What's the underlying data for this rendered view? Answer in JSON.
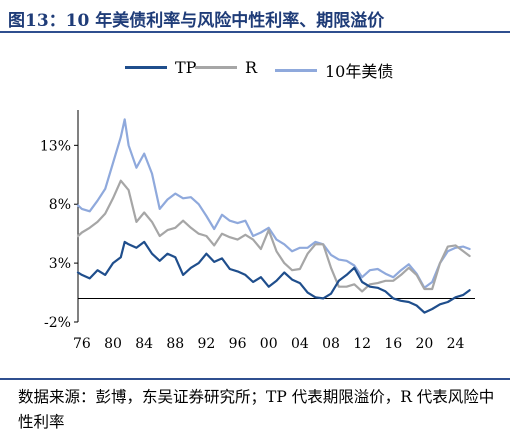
{
  "title": "图13：10 年美债利率与风险中性利率、期限溢价",
  "source_note": "数据来源：彭博，东吴证券研究所；TP 代表期限溢价，R 代表风险中性利率",
  "colors": {
    "title": "#1f3c78",
    "rule": "#2f4f8f"
  },
  "chart_data": {
    "type": "line",
    "title": "",
    "xlabel": "",
    "ylabel": "",
    "x_tick_labels": [
      "76",
      "80",
      "84",
      "88",
      "92",
      "96",
      "00",
      "04",
      "08",
      "12",
      "16",
      "20",
      "24"
    ],
    "x_ticks": [
      1976,
      1980,
      1984,
      1988,
      1992,
      1996,
      2000,
      2004,
      2008,
      2012,
      2016,
      2020,
      2024
    ],
    "y_tick_labels": [
      "-2%",
      "3%",
      "8%",
      "13%"
    ],
    "y_ticks": [
      -2,
      3,
      8,
      13
    ],
    "xlim": [
      1975.5,
      2026.5
    ],
    "ylim": [
      -2,
      16
    ],
    "zero_line": true,
    "legend_position": "top",
    "series": [
      {
        "name": "TP",
        "color": "#1f4e8c",
        "x": [
          1975.5,
          1976,
          1977,
          1978,
          1979,
          1980,
          1981,
          1981.5,
          1982,
          1983,
          1984,
          1985,
          1986,
          1987,
          1988,
          1989,
          1990,
          1991,
          1992,
          1993,
          1994,
          1995,
          1996,
          1997,
          1998,
          1999,
          2000,
          2001,
          2002,
          2003,
          2004,
          2005,
          2006,
          2007,
          2008,
          2009,
          2010,
          2011,
          2012,
          2013,
          2014,
          2015,
          2016,
          2017,
          2018,
          2019,
          2020,
          2021,
          2022,
          2023,
          2024,
          2025,
          2025.8
        ],
        "y": [
          2.2,
          2.0,
          1.7,
          2.4,
          2.0,
          3.0,
          3.5,
          4.8,
          4.6,
          4.3,
          4.8,
          3.8,
          3.2,
          3.8,
          3.5,
          2.0,
          2.6,
          3.0,
          3.8,
          3.1,
          3.4,
          2.5,
          2.3,
          2.0,
          1.4,
          1.8,
          1.0,
          1.5,
          2.2,
          1.6,
          1.3,
          0.5,
          0.1,
          0.0,
          0.4,
          1.5,
          2.0,
          2.6,
          1.4,
          1.0,
          0.9,
          0.6,
          0.0,
          -0.2,
          -0.3,
          -0.6,
          -1.2,
          -0.9,
          -0.5,
          -0.3,
          0.1,
          0.3,
          0.7
        ]
      },
      {
        "name": "R",
        "color": "#a6a6a6",
        "x": [
          1975.5,
          1976,
          1977,
          1978,
          1979,
          1980,
          1981,
          1982,
          1983,
          1984,
          1985,
          1986,
          1987,
          1988,
          1989,
          1990,
          1991,
          1992,
          1993,
          1994,
          1995,
          1996,
          1997,
          1998,
          1999,
          2000,
          2001,
          2002,
          2003,
          2004,
          2005,
          2006,
          2007,
          2008,
          2009,
          2010,
          2011,
          2012,
          2013,
          2014,
          2015,
          2016,
          2017,
          2018,
          2019,
          2020,
          2021,
          2022,
          2023,
          2024,
          2025,
          2025.8
        ],
        "y": [
          5.3,
          5.6,
          6.0,
          6.5,
          7.2,
          8.5,
          10.0,
          9.2,
          6.5,
          7.3,
          6.5,
          5.3,
          5.8,
          6.0,
          6.6,
          6.0,
          5.5,
          5.3,
          4.5,
          5.5,
          5.2,
          5.0,
          5.4,
          5.0,
          4.2,
          5.8,
          4.0,
          3.0,
          2.4,
          2.5,
          3.8,
          4.6,
          4.6,
          2.6,
          1.0,
          1.0,
          1.2,
          0.6,
          1.2,
          1.3,
          1.5,
          1.5,
          2.0,
          2.6,
          2.0,
          0.8,
          0.8,
          3.0,
          4.4,
          4.5,
          4.0,
          3.6
        ]
      },
      {
        "name": "10年美债",
        "color": "#8fa9dc",
        "x": [
          1975.5,
          1976,
          1977,
          1978,
          1979,
          1980,
          1981,
          1981.5,
          1982,
          1983,
          1984,
          1985,
          1986,
          1987,
          1988,
          1989,
          1990,
          1991,
          1992,
          1993,
          1994,
          1995,
          1996,
          1997,
          1998,
          1999,
          2000,
          2001,
          2002,
          2003,
          2004,
          2005,
          2006,
          2007,
          2008,
          2009,
          2010,
          2011,
          2012,
          2013,
          2014,
          2015,
          2016,
          2017,
          2018,
          2019,
          2020,
          2021,
          2022,
          2023,
          2024,
          2025,
          2025.8
        ],
        "y": [
          7.9,
          7.6,
          7.4,
          8.3,
          9.3,
          11.5,
          13.7,
          15.2,
          13.0,
          11.1,
          12.3,
          10.6,
          7.6,
          8.4,
          8.9,
          8.5,
          8.6,
          8.0,
          7.0,
          5.9,
          7.1,
          6.6,
          6.4,
          6.6,
          5.3,
          5.6,
          6.0,
          5.0,
          4.6,
          4.0,
          4.3,
          4.3,
          4.8,
          4.6,
          3.7,
          3.3,
          3.2,
          2.8,
          1.8,
          2.4,
          2.5,
          2.1,
          1.8,
          2.4,
          2.9,
          2.1,
          0.9,
          1.4,
          3.0,
          4.0,
          4.3,
          4.4,
          4.2
        ]
      }
    ]
  }
}
